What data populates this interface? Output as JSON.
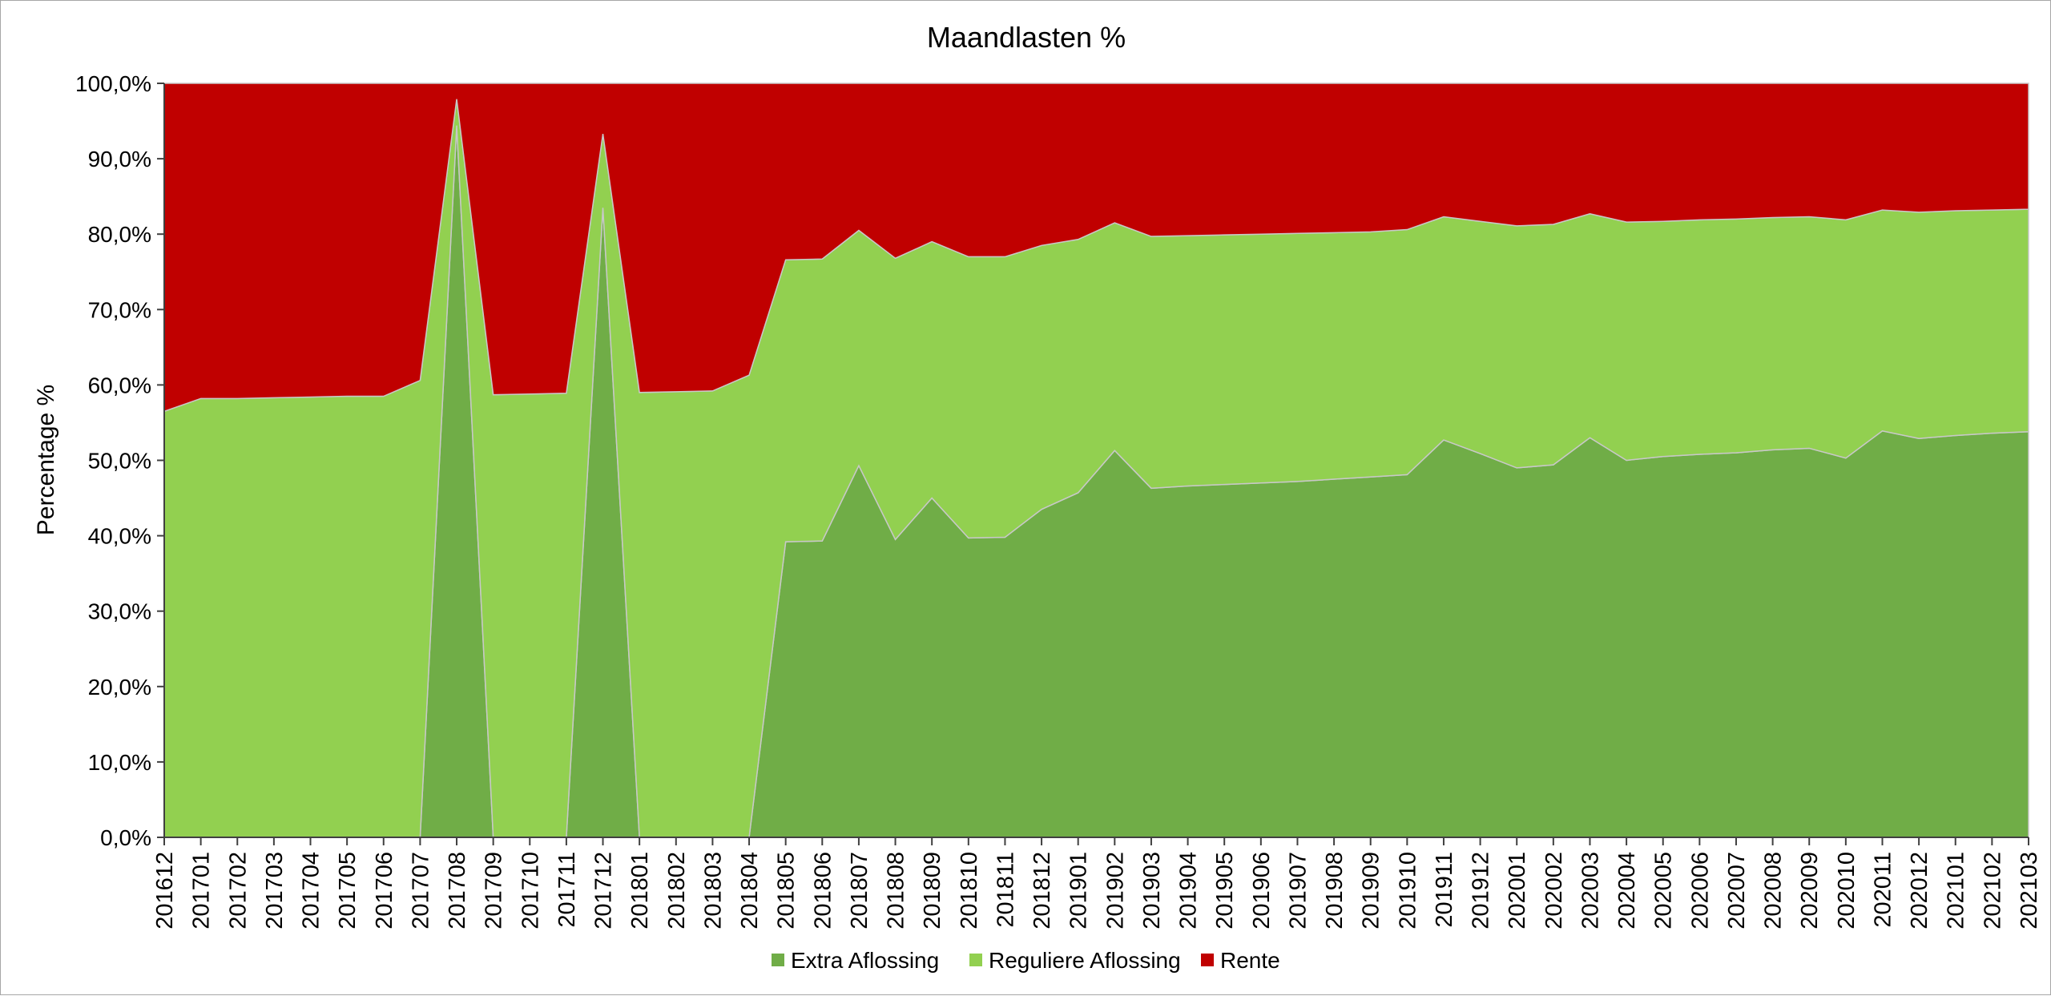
{
  "chart_data": {
    "type": "area",
    "stacked": true,
    "title": "Maandlasten %",
    "xlabel": "",
    "ylabel": "Percentage %",
    "ylim": [
      0,
      100
    ],
    "yticks": [
      "0,0%",
      "10,0%",
      "20,0%",
      "30,0%",
      "40,0%",
      "50,0%",
      "60,0%",
      "70,0%",
      "80,0%",
      "90,0%",
      "100,0%"
    ],
    "legend_position": "bottom",
    "categories": [
      "201612",
      "201701",
      "201702",
      "201703",
      "201704",
      "201705",
      "201706",
      "201707",
      "201708",
      "201709",
      "201710",
      "201711",
      "201712",
      "201801",
      "201802",
      "201803",
      "201804",
      "201805",
      "201806",
      "201807",
      "201808",
      "201809",
      "201810",
      "201811",
      "201812",
      "201901",
      "201902",
      "201903",
      "201904",
      "201905",
      "201906",
      "201907",
      "201908",
      "201909",
      "201910",
      "201911",
      "201912",
      "202001",
      "202002",
      "202003",
      "202004",
      "202005",
      "202006",
      "202007",
      "202008",
      "202009",
      "202010",
      "202011",
      "202012",
      "202101",
      "202102",
      "202103"
    ],
    "series": [
      {
        "name": "Extra Aflossing",
        "color": "#70ad47",
        "values": [
          0,
          0,
          0,
          0,
          0,
          0,
          0,
          0,
          94.4,
          0,
          0,
          0,
          83.5,
          0,
          0,
          0,
          0,
          39.2,
          39.3,
          49.3,
          39.5,
          45.0,
          39.7,
          39.8,
          43.5,
          45.7,
          51.3,
          46.3,
          46.6,
          46.8,
          47.0,
          47.2,
          47.5,
          47.8,
          48.1,
          52.7,
          50.9,
          49.0,
          49.4,
          53.0,
          50.0,
          50.5,
          50.8,
          51.0,
          51.4,
          51.6,
          50.3,
          53.9,
          52.9,
          53.3,
          53.6,
          53.8
        ]
      },
      {
        "name": "Reguliere Aflossing",
        "color": "#92d050",
        "values": [
          56.5,
          58.2,
          58.2,
          58.3,
          58.4,
          58.5,
          58.5,
          60.6,
          3.5,
          58.7,
          58.8,
          58.9,
          9.8,
          59.0,
          59.1,
          59.2,
          61.3,
          37.4,
          37.4,
          31.2,
          37.3,
          34.0,
          37.3,
          37.2,
          35.0,
          33.6,
          30.2,
          33.4,
          33.2,
          33.1,
          33.0,
          32.9,
          32.7,
          32.5,
          32.5,
          29.6,
          30.8,
          32.1,
          31.9,
          29.7,
          31.6,
          31.2,
          31.1,
          31.0,
          30.8,
          30.7,
          31.6,
          29.3,
          30.0,
          29.8,
          29.6,
          29.5
        ]
      },
      {
        "name": "Rente",
        "color": "#c00000",
        "values": [
          43.5,
          41.8,
          41.8,
          41.7,
          41.6,
          41.5,
          41.5,
          39.4,
          2.1,
          41.3,
          41.2,
          41.1,
          6.7,
          41.0,
          40.9,
          40.8,
          38.7,
          23.4,
          23.3,
          19.5,
          23.2,
          21.0,
          23.0,
          23.0,
          21.5,
          20.7,
          18.5,
          20.3,
          20.2,
          20.1,
          20.0,
          19.9,
          19.8,
          19.7,
          19.4,
          17.7,
          18.3,
          18.9,
          18.7,
          17.3,
          18.4,
          18.3,
          18.1,
          18.0,
          17.8,
          17.7,
          18.1,
          16.8,
          17.1,
          16.9,
          16.8,
          16.7
        ]
      }
    ]
  }
}
